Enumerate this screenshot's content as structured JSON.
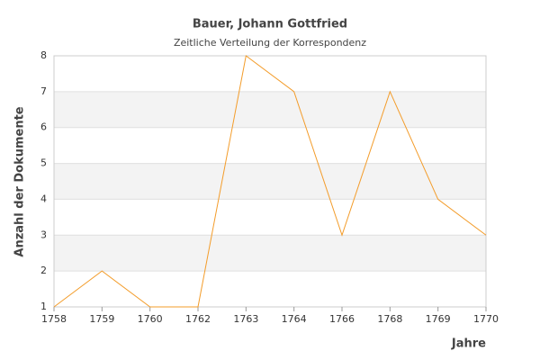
{
  "chart_data": {
    "type": "line",
    "title": "Bauer, Johann Gottfried",
    "subtitle": "Zeitliche Verteilung der Korrespondenz",
    "x_label": "Jahre",
    "y_label": "Anzahl der Dokumente",
    "categories": [
      "1758",
      "1759",
      "1760",
      "1762",
      "1763",
      "1764",
      "1766",
      "1768",
      "1769",
      "1770"
    ],
    "values": [
      1,
      2,
      1,
      1,
      8,
      7,
      3,
      7,
      4,
      3
    ],
    "color": "#f39c2a",
    "ylim": [
      1,
      8
    ],
    "yticks": [
      1,
      2,
      3,
      4,
      5,
      6,
      7,
      8
    ],
    "grid": true,
    "alternate_bands": true
  }
}
